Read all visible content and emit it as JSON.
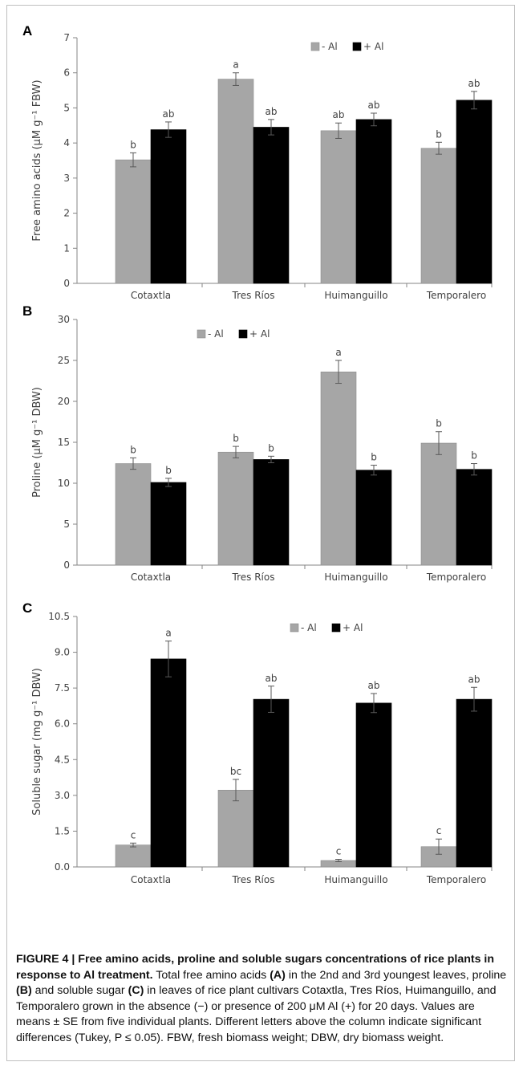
{
  "figure": {
    "caption_title": "FIGURE 4 | Free amino acids, proline and soluble sugars concentrations of rice plants in response to Al treatment.",
    "caption_parts": [
      {
        "text": " Total free amino acids ",
        "bold": false
      },
      {
        "text": "(A)",
        "bold": true
      },
      {
        "text": " in the 2nd and 3rd youngest leaves, proline ",
        "bold": false
      },
      {
        "text": "(B)",
        "bold": true
      },
      {
        "text": " and soluble sugar ",
        "bold": false
      },
      {
        "text": "(C)",
        "bold": true
      },
      {
        "text": " in leaves of rice plant cultivars Cotaxtla, Tres Ríos, Huimanguillo, and Temporalero grown in the absence (−) or presence of 200 μM Al (+) for 20 days. Values are means ± SE from five individual plants. Different letters above the column indicate significant differences (Tukey, P ≤ 0.05). FBW, fresh biomass weight; DBW, dry biomass weight.",
        "bold": false
      }
    ]
  },
  "chart_data": [
    {
      "panel": "A",
      "type": "bar",
      "categories": [
        "Cotaxtla",
        "Tres Ríos",
        "Huimanguillo",
        "Temporalero"
      ],
      "ylabel": "Free amino acids (μM g⁻¹ FBW)",
      "ylim": [
        0,
        7
      ],
      "yticks": [
        0,
        1,
        2,
        3,
        4,
        5,
        6,
        7
      ],
      "tick_decimals": 0,
      "legend_position": "top-right",
      "series": [
        {
          "name": "- Al",
          "color": "#a6a6a6",
          "values": [
            3.52,
            5.82,
            4.35,
            3.85
          ],
          "errors": [
            0.2,
            0.18,
            0.22,
            0.17
          ],
          "letters": [
            "b",
            "a",
            "ab",
            "b"
          ]
        },
        {
          "name": "+ Al",
          "color": "#000000",
          "values": [
            4.38,
            4.45,
            4.67,
            5.22
          ],
          "errors": [
            0.22,
            0.22,
            0.18,
            0.25
          ],
          "letters": [
            "ab",
            "ab",
            "ab",
            "ab"
          ]
        }
      ]
    },
    {
      "panel": "B",
      "type": "bar",
      "categories": [
        "Cotaxtla",
        "Tres Ríos",
        "Huimanguillo",
        "Temporalero"
      ],
      "ylabel": "Proline (μM g⁻¹ DBW)",
      "ylim": [
        0,
        30
      ],
      "yticks": [
        0,
        5,
        10,
        15,
        20,
        25,
        30
      ],
      "tick_decimals": 0,
      "legend_position": "top-left",
      "series": [
        {
          "name": "- Al",
          "color": "#a6a6a6",
          "values": [
            12.4,
            13.8,
            23.6,
            14.9
          ],
          "errors": [
            0.7,
            0.7,
            1.4,
            1.4
          ],
          "letters": [
            "b",
            "b",
            "a",
            "b"
          ]
        },
        {
          "name": "+ Al",
          "color": "#000000",
          "values": [
            10.1,
            12.9,
            11.6,
            11.7
          ],
          "errors": [
            0.5,
            0.4,
            0.6,
            0.7
          ],
          "letters": [
            "b",
            "b",
            "b",
            "b"
          ]
        }
      ]
    },
    {
      "panel": "C",
      "type": "bar",
      "categories": [
        "Cotaxtla",
        "Tres Ríos",
        "Huimanguillo",
        "Temporalero"
      ],
      "ylabel": "Soluble sugar (mg g⁻¹ DBW)",
      "ylim": [
        0,
        10.5
      ],
      "yticks": [
        0.0,
        1.5,
        3.0,
        4.5,
        6.0,
        7.5,
        9.0,
        10.5
      ],
      "tick_decimals": 1,
      "legend_position": "top-right",
      "series": [
        {
          "name": "- Al",
          "color": "#a6a6a6",
          "values": [
            0.92,
            3.22,
            0.27,
            0.85
          ],
          "errors": [
            0.08,
            0.45,
            0.05,
            0.32
          ],
          "letters": [
            "c",
            "bc",
            "c",
            "c"
          ]
        },
        {
          "name": "+ Al",
          "color": "#000000",
          "values": [
            8.72,
            7.03,
            6.87,
            7.03
          ],
          "errors": [
            0.75,
            0.55,
            0.4,
            0.5
          ],
          "letters": [
            "a",
            "ab",
            "ab",
            "ab"
          ]
        }
      ]
    }
  ]
}
